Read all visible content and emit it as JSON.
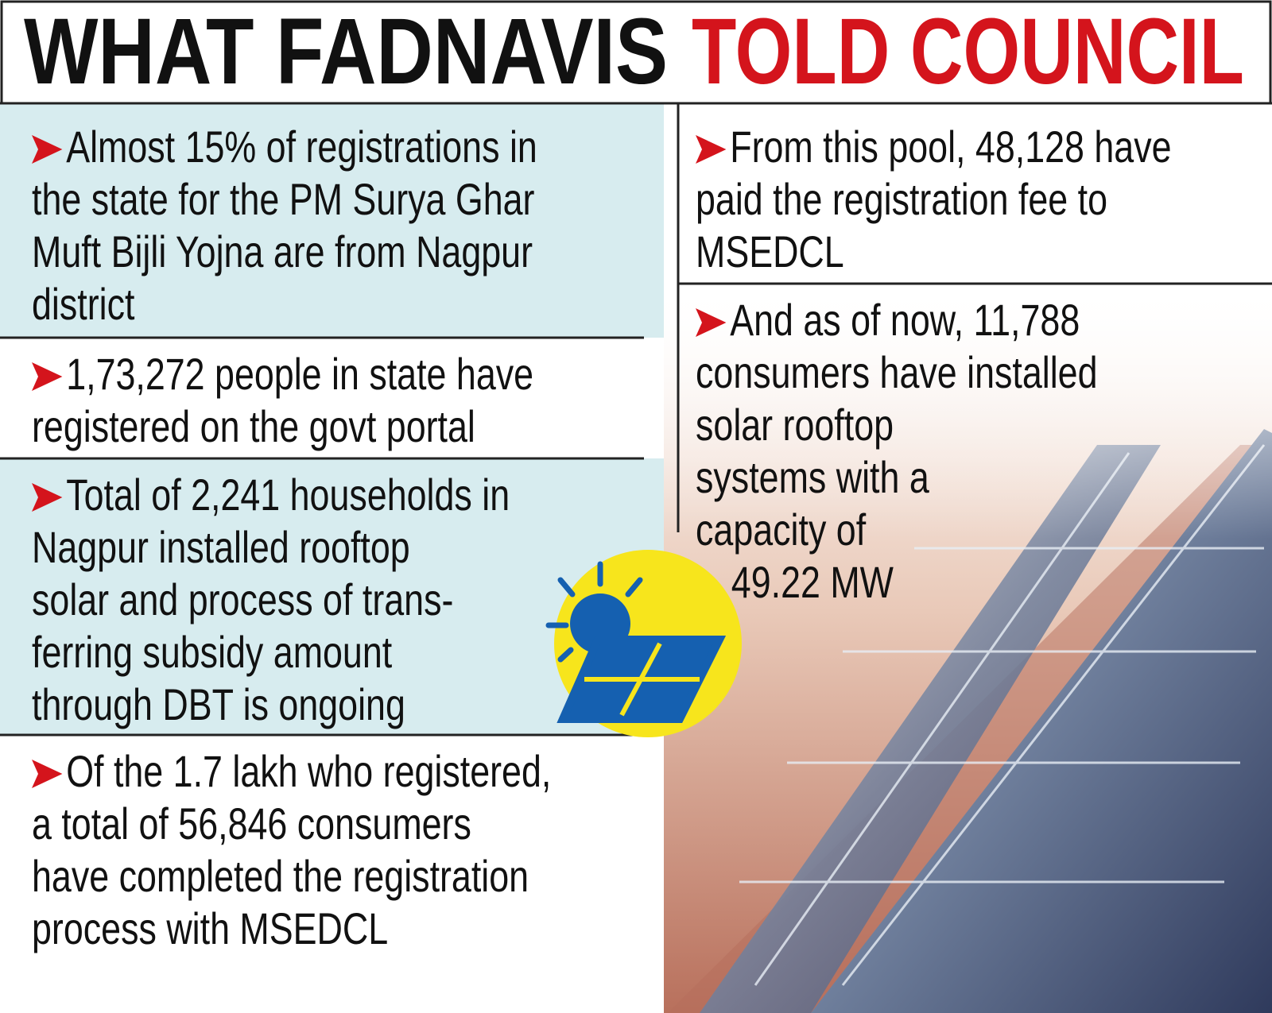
{
  "header": {
    "title_black": "WHAT FADNAVIS",
    "title_red": "TOLD COUNCIL"
  },
  "left": [
    {
      "lines": [
        "Almost 15% of registrations in",
        "the state for the PM Surya Ghar",
        "Muft Bijli Yojna are from Nagpur",
        "district"
      ]
    },
    {
      "lines": [
        "1,73,272 people in state have",
        "registered on the govt portal"
      ]
    },
    {
      "lines": [
        "Total of 2,241 households in",
        "Nagpur installed rooftop",
        "solar and process of trans-",
        "ferring subsidy amount",
        "through DBT is ongoing"
      ]
    },
    {
      "lines": [
        "Of the 1.7 lakh who registered,",
        "a total of 56,846 consumers",
        "have completed the registration",
        "process with MSEDCL"
      ]
    }
  ],
  "right": [
    {
      "lines": [
        "From this pool, 48,128 have",
        "paid the registration fee to",
        "MSEDCL"
      ]
    },
    {
      "lines": [
        "And as of now, 11,788",
        "consumers have installed",
        "solar rooftop",
        "systems with a",
        "capacity of",
        "49.22 MW"
      ]
    }
  ]
}
